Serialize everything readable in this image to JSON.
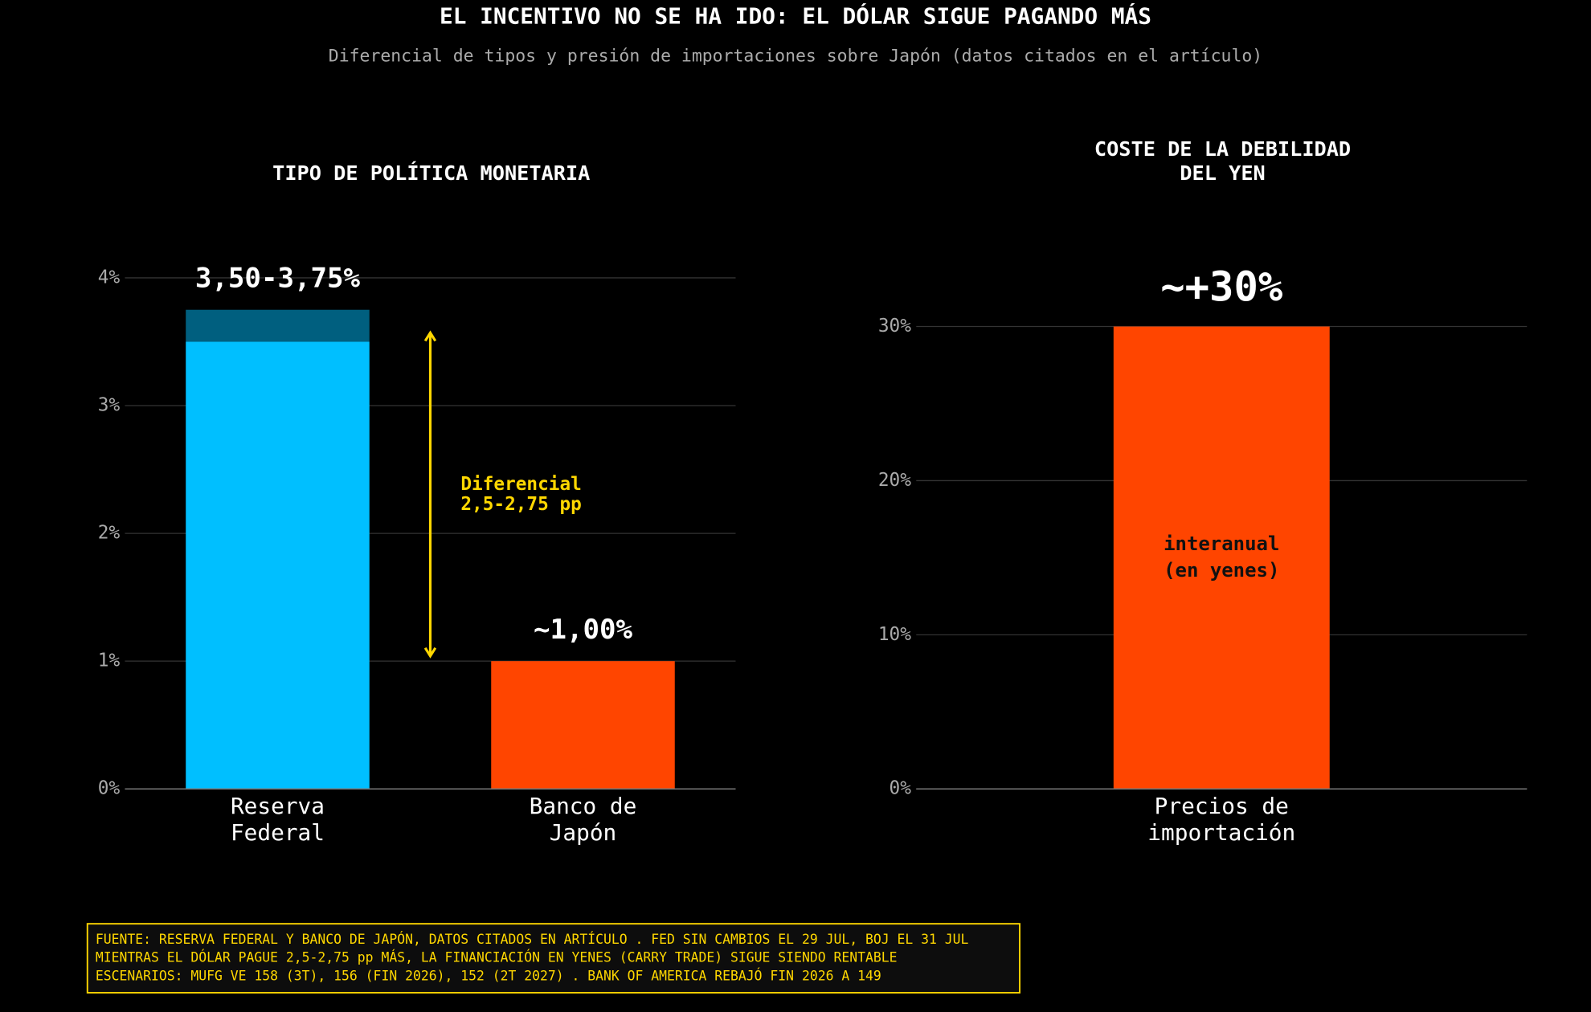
{
  "title": "EL INCENTIVO NO SE HA IDO: EL DÓLAR SIGUE PAGANDO MÁS",
  "subtitle": "Diferencial de tipos y presión de importaciones sobre Japón (datos citados en el artículo)",
  "chart_data": [
    {
      "type": "bar",
      "title": "TIPO DE POLÍTICA MONETARIA",
      "categories": [
        "Reserva\nFederal",
        "Banco de\nJapón"
      ],
      "series": [
        {
          "colors": [
            "#00bfff",
            "#ff4500"
          ],
          "values": [
            3.5,
            1
          ]
        },
        {
          "color": "#005f7f",
          "values": [
            0.25,
            null
          ]
        }
      ],
      "value_labels": [
        "3,50-3,75%",
        "~1,00%"
      ],
      "annotation": {
        "text": "Diferencial\n2,5-2,75 pp",
        "from": 1.04,
        "to": 3.57,
        "color": "#ffd700"
      },
      "ylim": [
        0,
        4
      ],
      "yticks": [
        {
          "value": 0,
          "label": "0%"
        },
        {
          "value": 1,
          "label": "1%"
        },
        {
          "value": 2,
          "label": "2%"
        },
        {
          "value": 3,
          "label": "3%"
        },
        {
          "value": 4,
          "label": "4%"
        }
      ],
      "grid": true
    },
    {
      "type": "bar",
      "title": "COSTE DE LA DEBILIDAD\nDEL YEN",
      "categories": [
        "Precios de\nimportación"
      ],
      "series": [
        {
          "colors": [
            "#ff4500"
          ],
          "values": [
            30
          ]
        }
      ],
      "value_labels": [
        "~+30%"
      ],
      "inner_label": "interanual\n(en yenes)",
      "ylim": [
        0,
        30
      ],
      "yticks": [
        {
          "value": 0,
          "label": "0%"
        },
        {
          "value": 10,
          "label": "10%"
        },
        {
          "value": 20,
          "label": "20%"
        },
        {
          "value": 30,
          "label": "30%"
        }
      ],
      "grid": true
    }
  ],
  "footer": [
    "FUENTE: RESERVA FEDERAL Y BANCO DE JAPÓN, DATOS CITADOS EN ARTÍCULO . FED SIN CAMBIOS EL 29 JUL, BOJ EL 31 JUL",
    "MIENTRAS EL DÓLAR PAGUE 2,5-2,75 pp MÁS, LA FINANCIACIÓN EN YENES (CARRY TRADE) SIGUE SIENDO RENTABLE",
    "ESCENARIOS: MUFG VE 158 (3T), 156 (FIN 2026), 152 (2T 2027) . BANK OF AMERICA REBAJÓ FIN 2026 A 149"
  ]
}
